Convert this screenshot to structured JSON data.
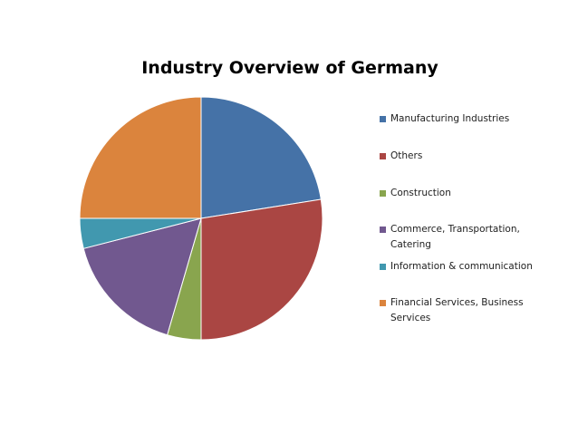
{
  "chart_data": {
    "type": "pie",
    "title": "Industry Overview of Germany",
    "categories": [
      "Manufacturing Industries",
      "Others",
      "Construction",
      "Commerce, Transportation, Catering",
      "Information & communication",
      "Financial Services, Business Services"
    ],
    "values": [
      22.5,
      27.5,
      4.5,
      16.5,
      4.0,
      25.0
    ],
    "colors": [
      "#4572A7",
      "#AA4643",
      "#89A54E",
      "#71588F",
      "#4198AF",
      "#DB843D"
    ],
    "legend_position": "right",
    "start_angle": "12 o'clock, clockwise"
  }
}
